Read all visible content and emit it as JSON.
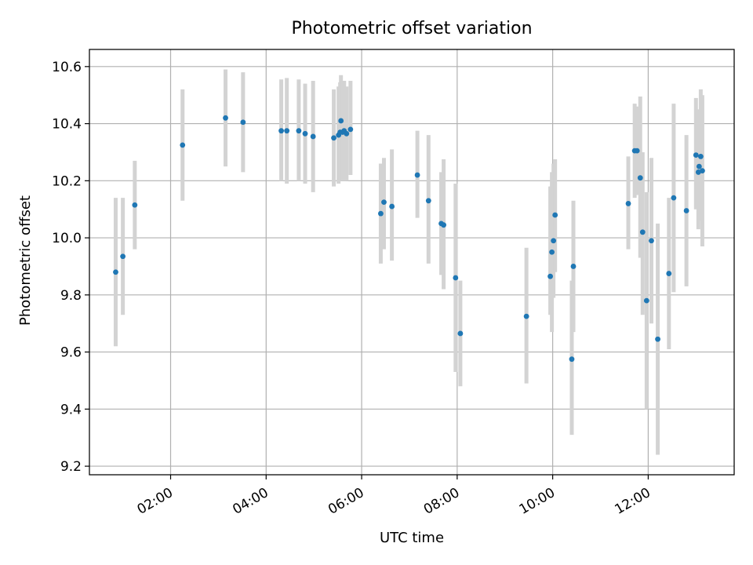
{
  "chart_data": {
    "type": "scatter",
    "title": "Photometric offset variation",
    "xlabel": "UTC time",
    "ylabel": "Photometric offset",
    "x_unit": "time of day (HH:MM UTC)",
    "xlim": [
      "00:18",
      "13:48"
    ],
    "ylim": [
      9.17,
      10.66
    ],
    "xticks": [
      "02:00",
      "04:00",
      "06:00",
      "08:00",
      "10:00",
      "12:00"
    ],
    "yticks": [
      9.2,
      9.4,
      9.6,
      9.8,
      10.0,
      10.2,
      10.4,
      10.6
    ],
    "grid": true,
    "legend": "none",
    "colors": {
      "marker": "#1f77b4",
      "errorbar": "#d3d3d3",
      "grid": "#b0b0b0",
      "axes": "#000000"
    },
    "series": [
      {
        "points": [
          {
            "x": "00:51",
            "y": 9.88,
            "ylo": 9.62,
            "yhi": 10.14
          },
          {
            "x": "01:00",
            "y": 9.935,
            "ylo": 9.73,
            "yhi": 10.14
          },
          {
            "x": "01:15",
            "y": 10.115,
            "ylo": 9.96,
            "yhi": 10.27
          },
          {
            "x": "02:15",
            "y": 10.325,
            "ylo": 10.13,
            "yhi": 10.52
          },
          {
            "x": "03:09",
            "y": 10.42,
            "ylo": 10.25,
            "yhi": 10.59
          },
          {
            "x": "03:31",
            "y": 10.405,
            "ylo": 10.23,
            "yhi": 10.58
          },
          {
            "x": "04:19",
            "y": 10.375,
            "ylo": 10.2,
            "yhi": 10.555
          },
          {
            "x": "04:26",
            "y": 10.375,
            "ylo": 10.19,
            "yhi": 10.56
          },
          {
            "x": "04:41",
            "y": 10.375,
            "ylo": 10.2,
            "yhi": 10.555
          },
          {
            "x": "04:49",
            "y": 10.365,
            "ylo": 10.19,
            "yhi": 10.54
          },
          {
            "x": "04:59",
            "y": 10.355,
            "ylo": 10.16,
            "yhi": 10.55
          },
          {
            "x": "05:25",
            "y": 10.35,
            "ylo": 10.18,
            "yhi": 10.52
          },
          {
            "x": "05:31",
            "y": 10.36,
            "ylo": 10.19,
            "yhi": 10.53
          },
          {
            "x": "05:33",
            "y": 10.37,
            "ylo": 10.2,
            "yhi": 10.545
          },
          {
            "x": "05:34",
            "y": 10.41,
            "ylo": 10.25,
            "yhi": 10.57
          },
          {
            "x": "05:36",
            "y": 10.37,
            "ylo": 10.2,
            "yhi": 10.55
          },
          {
            "x": "05:38",
            "y": 10.375,
            "ylo": 10.2,
            "yhi": 10.55
          },
          {
            "x": "05:41",
            "y": 10.365,
            "ylo": 10.2,
            "yhi": 10.53
          },
          {
            "x": "05:46",
            "y": 10.38,
            "ylo": 10.22,
            "yhi": 10.55
          },
          {
            "x": "06:24",
            "y": 10.085,
            "ylo": 9.91,
            "yhi": 10.26
          },
          {
            "x": "06:28",
            "y": 10.125,
            "ylo": 9.96,
            "yhi": 10.28
          },
          {
            "x": "06:38",
            "y": 10.11,
            "ylo": 9.92,
            "yhi": 10.31
          },
          {
            "x": "07:10",
            "y": 10.22,
            "ylo": 10.07,
            "yhi": 10.375
          },
          {
            "x": "07:24",
            "y": 10.13,
            "ylo": 9.91,
            "yhi": 10.36
          },
          {
            "x": "07:40",
            "y": 10.05,
            "ylo": 9.87,
            "yhi": 10.23
          },
          {
            "x": "07:43",
            "y": 10.045,
            "ylo": 9.82,
            "yhi": 10.275
          },
          {
            "x": "07:58",
            "y": 9.86,
            "ylo": 9.53,
            "yhi": 10.19
          },
          {
            "x": "08:04",
            "y": 9.665,
            "ylo": 9.48,
            "yhi": 9.85
          },
          {
            "x": "09:27",
            "y": 9.725,
            "ylo": 9.49,
            "yhi": 9.965
          },
          {
            "x": "09:57",
            "y": 9.865,
            "ylo": 9.73,
            "yhi": 10.18
          },
          {
            "x": "09:59",
            "y": 9.95,
            "ylo": 9.67,
            "yhi": 10.23
          },
          {
            "x": "10:01",
            "y": 9.99,
            "ylo": 9.79,
            "yhi": 10.26
          },
          {
            "x": "10:03",
            "y": 10.08,
            "ylo": 9.88,
            "yhi": 10.275
          },
          {
            "x": "10:24",
            "y": 9.575,
            "ylo": 9.31,
            "yhi": 9.85
          },
          {
            "x": "10:26",
            "y": 9.9,
            "ylo": 9.67,
            "yhi": 10.13
          },
          {
            "x": "11:35",
            "y": 10.12,
            "ylo": 9.96,
            "yhi": 10.285
          },
          {
            "x": "11:43",
            "y": 10.305,
            "ylo": 10.14,
            "yhi": 10.47
          },
          {
            "x": "11:46",
            "y": 10.305,
            "ylo": 10.15,
            "yhi": 10.46
          },
          {
            "x": "11:50",
            "y": 10.21,
            "ylo": 9.93,
            "yhi": 10.495
          },
          {
            "x": "11:53",
            "y": 10.02,
            "ylo": 9.73,
            "yhi": 10.3
          },
          {
            "x": "11:58",
            "y": 9.78,
            "ylo": 9.4,
            "yhi": 10.16
          },
          {
            "x": "12:04",
            "y": 9.99,
            "ylo": 9.7,
            "yhi": 10.28
          },
          {
            "x": "12:12",
            "y": 9.645,
            "ylo": 9.24,
            "yhi": 10.05
          },
          {
            "x": "12:26",
            "y": 9.875,
            "ylo": 9.61,
            "yhi": 10.14
          },
          {
            "x": "12:32",
            "y": 10.14,
            "ylo": 9.81,
            "yhi": 10.47
          },
          {
            "x": "12:48",
            "y": 10.095,
            "ylo": 9.83,
            "yhi": 10.36
          },
          {
            "x": "13:00",
            "y": 10.29,
            "ylo": 10.1,
            "yhi": 10.49
          },
          {
            "x": "13:03",
            "y": 10.23,
            "ylo": 10.03,
            "yhi": 10.42
          },
          {
            "x": "13:04",
            "y": 10.25,
            "ylo": 10.06,
            "yhi": 10.45
          },
          {
            "x": "13:06",
            "y": 10.285,
            "ylo": 10.06,
            "yhi": 10.52
          },
          {
            "x": "13:08",
            "y": 10.235,
            "ylo": 9.97,
            "yhi": 10.5
          }
        ]
      }
    ]
  }
}
